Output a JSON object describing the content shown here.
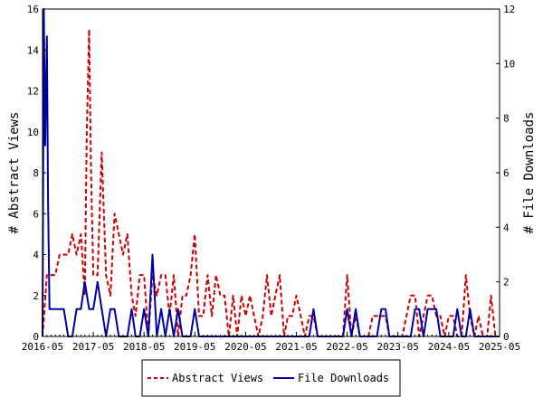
{
  "chart_data": {
    "type": "line",
    "ylabel": "# Abstract Views",
    "y2label": "# File Downloads",
    "ylim": [
      0,
      16
    ],
    "y2lim": [
      0,
      12
    ],
    "yticks": [
      0,
      2,
      4,
      6,
      8,
      10,
      12,
      14,
      16
    ],
    "y2ticks": [
      0,
      2,
      4,
      6,
      8,
      10,
      12
    ],
    "xlim": [
      "2016-05",
      "2025-05"
    ],
    "xticks": [
      "2016-05",
      "2017-05",
      "2018-05",
      "2019-05",
      "2020-05",
      "2021-05",
      "2022-05",
      "2023-05",
      "2024-05",
      "2025-05"
    ],
    "legend_placement": "bottom-center",
    "series": [
      {
        "name": "Abstract Views",
        "axis": "left",
        "color": "#cc0000",
        "style": "dashed",
        "points": [
          [
            "2016-05-01",
            0
          ],
          [
            "2016-06-01",
            3
          ],
          [
            "2016-08-01",
            3
          ],
          [
            "2016-09-01",
            4
          ],
          [
            "2016-10-01",
            4
          ],
          [
            "2016-11-01",
            4
          ],
          [
            "2016-12-01",
            5
          ],
          [
            "2017-01-01",
            4
          ],
          [
            "2017-02-01",
            5
          ],
          [
            "2017-03-01",
            2
          ],
          [
            "2017-03-15",
            10
          ],
          [
            "2017-04-01",
            15
          ],
          [
            "2017-04-15",
            8
          ],
          [
            "2017-05-01",
            3
          ],
          [
            "2017-06-01",
            3
          ],
          [
            "2017-07-01",
            9
          ],
          [
            "2017-08-01",
            3
          ],
          [
            "2017-09-01",
            2
          ],
          [
            "2017-10-01",
            6
          ],
          [
            "2017-11-01",
            5
          ],
          [
            "2017-12-01",
            4
          ],
          [
            "2018-01-01",
            5
          ],
          [
            "2018-02-01",
            2
          ],
          [
            "2018-03-01",
            1
          ],
          [
            "2018-04-01",
            3
          ],
          [
            "2018-05-01",
            3
          ],
          [
            "2018-06-01",
            0
          ],
          [
            "2018-07-01",
            3
          ],
          [
            "2018-08-01",
            2
          ],
          [
            "2018-09-01",
            3
          ],
          [
            "2018-10-01",
            3
          ],
          [
            "2018-11-01",
            1
          ],
          [
            "2018-12-01",
            3
          ],
          [
            "2019-01-01",
            0
          ],
          [
            "2019-02-01",
            2
          ],
          [
            "2019-03-01",
            2
          ],
          [
            "2019-04-01",
            3
          ],
          [
            "2019-05-01",
            5
          ],
          [
            "2019-06-01",
            1
          ],
          [
            "2019-07-01",
            1
          ],
          [
            "2019-08-01",
            3
          ],
          [
            "2019-09-01",
            1
          ],
          [
            "2019-10-01",
            3
          ],
          [
            "2019-11-01",
            2
          ],
          [
            "2019-12-01",
            2
          ],
          [
            "2020-01-01",
            0
          ],
          [
            "2020-02-01",
            2
          ],
          [
            "2020-03-01",
            0
          ],
          [
            "2020-04-01",
            2
          ],
          [
            "2020-05-01",
            1
          ],
          [
            "2020-06-01",
            2
          ],
          [
            "2020-07-01",
            1
          ],
          [
            "2020-08-01",
            0
          ],
          [
            "2020-09-01",
            1
          ],
          [
            "2020-10-01",
            3
          ],
          [
            "2020-11-01",
            1
          ],
          [
            "2020-12-01",
            2
          ],
          [
            "2021-01-01",
            3
          ],
          [
            "2021-02-01",
            0
          ],
          [
            "2021-03-01",
            1
          ],
          [
            "2021-04-01",
            1
          ],
          [
            "2021-05-01",
            2
          ],
          [
            "2021-06-01",
            1
          ],
          [
            "2021-07-01",
            0
          ],
          [
            "2021-08-01",
            1
          ],
          [
            "2021-09-01",
            1
          ],
          [
            "2021-10-01",
            0
          ],
          [
            "2021-11-01",
            0
          ],
          [
            "2021-12-01",
            0
          ],
          [
            "2022-01-01",
            0
          ],
          [
            "2022-02-01",
            0
          ],
          [
            "2022-03-01",
            0
          ],
          [
            "2022-04-01",
            0
          ],
          [
            "2022-05-01",
            3
          ],
          [
            "2022-06-01",
            0
          ],
          [
            "2022-07-01",
            1
          ],
          [
            "2022-08-01",
            0
          ],
          [
            "2022-09-01",
            0
          ],
          [
            "2022-10-01",
            0
          ],
          [
            "2022-11-01",
            1
          ],
          [
            "2022-12-01",
            1
          ],
          [
            "2023-01-01",
            1
          ],
          [
            "2023-02-01",
            1
          ],
          [
            "2023-03-01",
            0
          ],
          [
            "2023-04-01",
            0
          ],
          [
            "2023-05-01",
            0
          ],
          [
            "2023-06-01",
            0
          ],
          [
            "2023-07-01",
            1
          ],
          [
            "2023-08-01",
            2
          ],
          [
            "2023-09-01",
            2
          ],
          [
            "2023-10-01",
            0
          ],
          [
            "2023-11-01",
            1
          ],
          [
            "2023-12-01",
            2
          ],
          [
            "2024-01-01",
            2
          ],
          [
            "2024-02-01",
            1
          ],
          [
            "2024-03-01",
            1
          ],
          [
            "2024-04-01",
            0
          ],
          [
            "2024-05-01",
            1
          ],
          [
            "2024-06-01",
            1
          ],
          [
            "2024-07-01",
            0
          ],
          [
            "2024-08-01",
            0
          ],
          [
            "2024-09-01",
            3
          ],
          [
            "2024-10-01",
            1
          ],
          [
            "2024-11-01",
            0
          ],
          [
            "2024-12-01",
            1
          ],
          [
            "2025-01-01",
            0
          ],
          [
            "2025-02-01",
            0
          ],
          [
            "2025-03-01",
            2
          ],
          [
            "2025-04-01",
            0
          ],
          [
            "2025-05-01",
            0
          ]
        ]
      },
      {
        "name": "File Downloads",
        "axis": "right",
        "color": "#0000aa",
        "style": "solid",
        "points": [
          [
            "2016-05-01",
            0
          ],
          [
            "2016-05-10",
            12
          ],
          [
            "2016-05-20",
            7
          ],
          [
            "2016-06-01",
            11
          ],
          [
            "2016-06-10",
            5
          ],
          [
            "2016-06-20",
            1
          ],
          [
            "2016-07-01",
            1
          ],
          [
            "2016-08-01",
            1
          ],
          [
            "2016-09-01",
            1
          ],
          [
            "2016-10-01",
            1
          ],
          [
            "2016-11-01",
            0
          ],
          [
            "2016-12-01",
            0
          ],
          [
            "2017-01-01",
            1
          ],
          [
            "2017-02-01",
            1
          ],
          [
            "2017-03-01",
            2
          ],
          [
            "2017-04-01",
            1
          ],
          [
            "2017-05-01",
            1
          ],
          [
            "2017-06-01",
            2
          ],
          [
            "2017-07-01",
            1
          ],
          [
            "2017-08-01",
            0
          ],
          [
            "2017-09-01",
            1
          ],
          [
            "2017-10-01",
            1
          ],
          [
            "2017-11-01",
            0
          ],
          [
            "2017-12-01",
            0
          ],
          [
            "2018-01-01",
            0
          ],
          [
            "2018-02-01",
            1
          ],
          [
            "2018-03-01",
            0
          ],
          [
            "2018-04-01",
            0
          ],
          [
            "2018-05-01",
            1
          ],
          [
            "2018-06-01",
            0
          ],
          [
            "2018-07-01",
            3
          ],
          [
            "2018-08-01",
            0
          ],
          [
            "2018-09-01",
            1
          ],
          [
            "2018-10-01",
            0
          ],
          [
            "2018-11-01",
            1
          ],
          [
            "2018-12-01",
            0
          ],
          [
            "2019-01-01",
            1
          ],
          [
            "2019-02-01",
            0
          ],
          [
            "2019-03-01",
            0
          ],
          [
            "2019-04-01",
            0
          ],
          [
            "2019-05-01",
            1
          ],
          [
            "2019-06-01",
            0
          ],
          [
            "2019-07-01",
            0
          ],
          [
            "2020-01-01",
            0
          ],
          [
            "2021-06-01",
            0
          ],
          [
            "2021-07-01",
            0
          ],
          [
            "2021-08-01",
            0
          ],
          [
            "2021-09-01",
            1
          ],
          [
            "2021-10-01",
            0
          ],
          [
            "2022-04-01",
            0
          ],
          [
            "2022-05-01",
            1
          ],
          [
            "2022-06-01",
            0
          ],
          [
            "2022-07-01",
            1
          ],
          [
            "2022-08-01",
            0
          ],
          [
            "2022-12-01",
            0
          ],
          [
            "2023-01-01",
            1
          ],
          [
            "2023-02-01",
            1
          ],
          [
            "2023-03-01",
            0
          ],
          [
            "2023-08-01",
            0
          ],
          [
            "2023-09-01",
            1
          ],
          [
            "2023-10-01",
            1
          ],
          [
            "2023-11-01",
            0
          ],
          [
            "2023-12-01",
            1
          ],
          [
            "2024-01-01",
            1
          ],
          [
            "2024-02-01",
            1
          ],
          [
            "2024-03-01",
            0
          ],
          [
            "2024-06-01",
            0
          ],
          [
            "2024-07-01",
            1
          ],
          [
            "2024-08-01",
            0
          ],
          [
            "2024-09-01",
            0
          ],
          [
            "2024-10-01",
            1
          ],
          [
            "2024-11-01",
            0
          ],
          [
            "2025-05-01",
            0
          ]
        ]
      }
    ]
  }
}
